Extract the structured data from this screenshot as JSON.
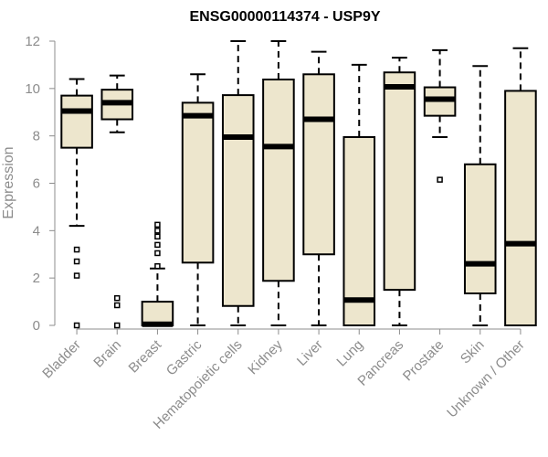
{
  "chart_data": {
    "type": "box",
    "title": "ENSG00000114374 - USP9Y",
    "ylabel": "Expression",
    "xlabel": "",
    "ylim": [
      0,
      12
    ],
    "yticks": [
      0,
      2,
      4,
      6,
      8,
      10,
      12
    ],
    "box_fill": "#ede6cd",
    "outline_color": "#000000",
    "axis_color": "#8c8c8c",
    "categories": [
      "Bladder",
      "Brain",
      "Breast",
      "Gastric",
      "Hematopoietic cells",
      "Kidney",
      "Liver",
      "Lung",
      "Pancreas",
      "Prostate",
      "Skin",
      "Unknown / Other"
    ],
    "boxes": [
      {
        "name": "Bladder",
        "whisker_low": 4.2,
        "q1": 7.5,
        "median": 9.05,
        "q3": 9.7,
        "whisker_high": 10.4,
        "outliers": [
          3.2,
          2.7,
          2.1,
          0
        ]
      },
      {
        "name": "Brain",
        "whisker_low": 8.15,
        "q1": 8.7,
        "median": 9.4,
        "q3": 9.95,
        "whisker_high": 10.55,
        "outliers": [
          1.15,
          0.85,
          0
        ]
      },
      {
        "name": "Breast",
        "whisker_low": 0,
        "q1": 0,
        "median": 0.05,
        "q3": 1.0,
        "whisker_high": 2.4,
        "outliers": [
          2.5,
          3.05,
          3.4,
          3.75,
          4.0,
          4.25
        ]
      },
      {
        "name": "Gastric",
        "whisker_low": 0,
        "q1": 2.65,
        "median": 8.85,
        "q3": 9.4,
        "whisker_high": 10.6,
        "outliers": []
      },
      {
        "name": "Hematopoietic cells",
        "whisker_low": 0,
        "q1": 0.82,
        "median": 7.95,
        "q3": 9.72,
        "whisker_high": 12.0,
        "outliers": []
      },
      {
        "name": "Kidney",
        "whisker_low": 0,
        "q1": 1.88,
        "median": 7.55,
        "q3": 10.38,
        "whisker_high": 12.0,
        "outliers": []
      },
      {
        "name": "Liver",
        "whisker_low": 0,
        "q1": 3.0,
        "median": 8.7,
        "q3": 10.6,
        "whisker_high": 11.55,
        "outliers": []
      },
      {
        "name": "Lung",
        "whisker_low": 0,
        "q1": 0,
        "median": 1.07,
        "q3": 7.95,
        "whisker_high": 11.0,
        "outliers": []
      },
      {
        "name": "Pancreas",
        "whisker_low": 0,
        "q1": 1.5,
        "median": 10.07,
        "q3": 10.68,
        "whisker_high": 11.3,
        "outliers": []
      },
      {
        "name": "Prostate",
        "whisker_low": 7.95,
        "q1": 8.85,
        "median": 9.55,
        "q3": 10.05,
        "whisker_high": 11.62,
        "outliers": [
          6.15
        ]
      },
      {
        "name": "Skin",
        "whisker_low": 0,
        "q1": 1.35,
        "median": 2.6,
        "q3": 6.8,
        "whisker_high": 10.95,
        "outliers": []
      },
      {
        "name": "Unknown / Other",
        "whisker_low": 0,
        "q1": 0,
        "median": 3.45,
        "q3": 9.9,
        "whisker_high": 11.7,
        "outliers": []
      }
    ]
  }
}
